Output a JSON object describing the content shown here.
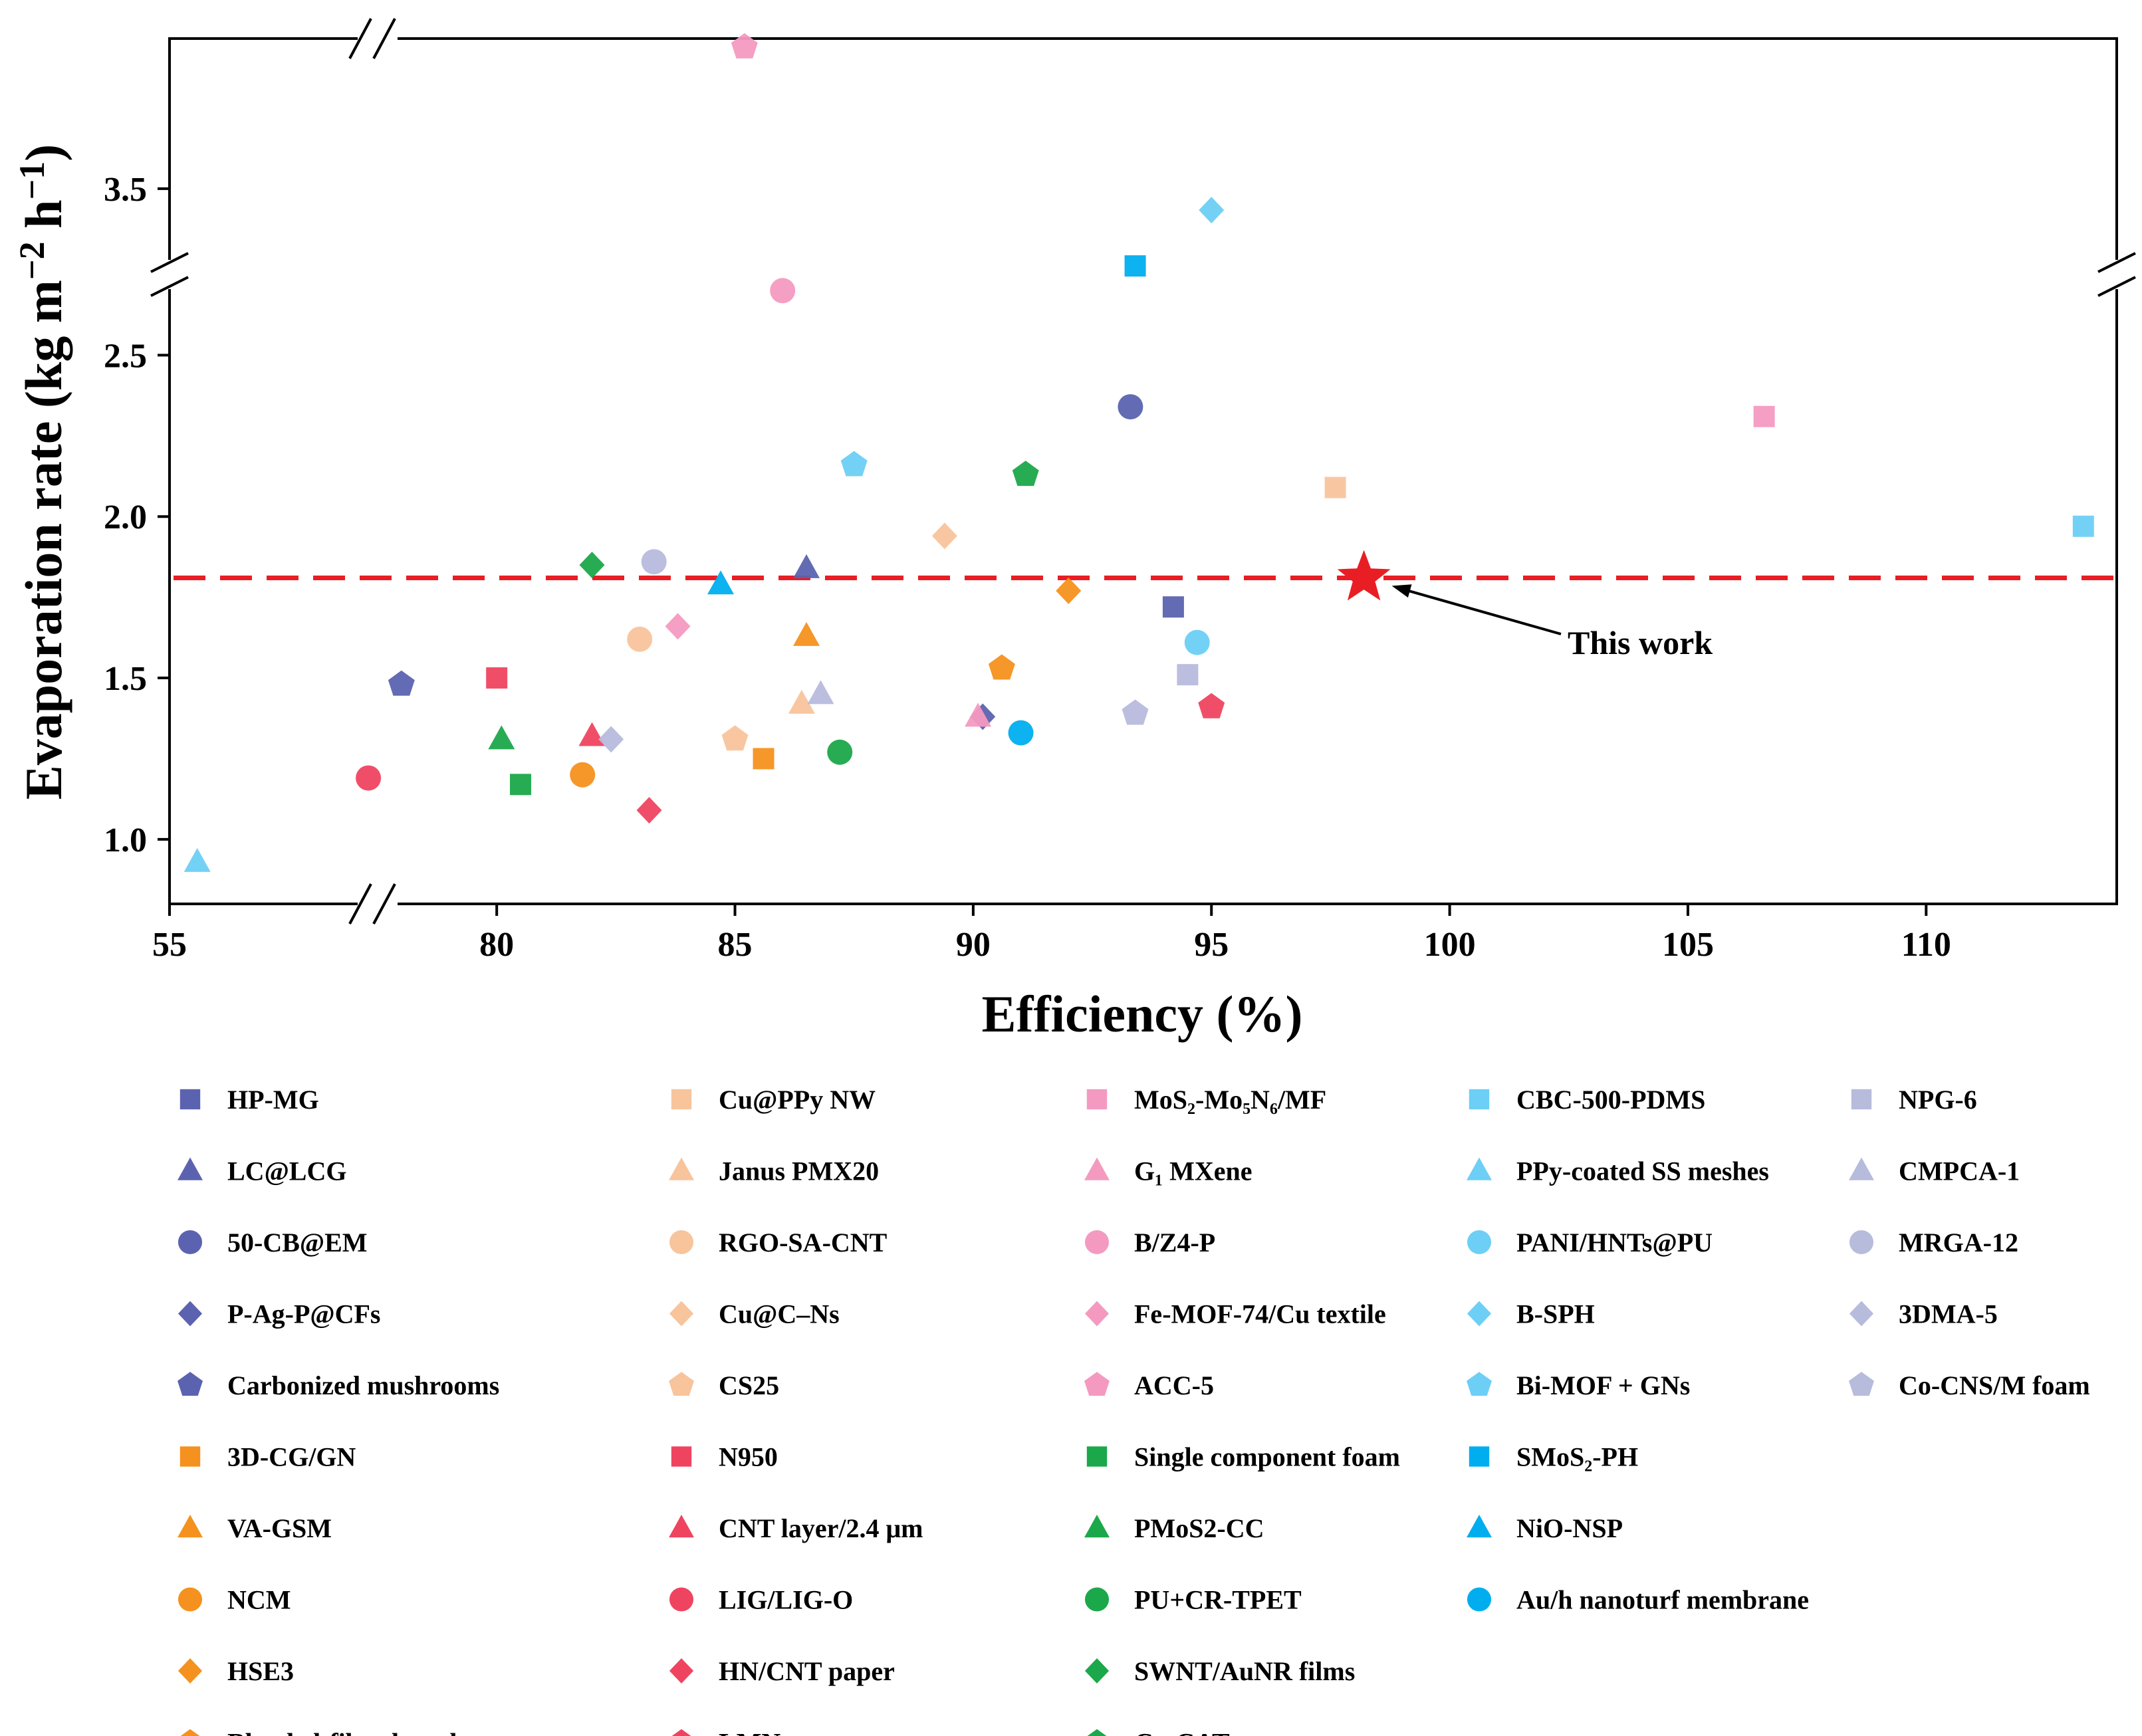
{
  "chart_data": {
    "type": "scatter",
    "title": "",
    "xlabel": "Efficiency (%)",
    "ylabel": "Evaporation rate (kg m−2 h−1)",
    "ylabel_parts": {
      "main": "Evaporation rate (kg m",
      "exp1": "−2",
      "mid": " h",
      "exp2": "−1",
      "end": ")"
    },
    "x_break": {
      "from": 55,
      "to": 77.5,
      "low_tick": 55
    },
    "y_break": {
      "from": 2.75,
      "to": 3.3
    },
    "xlim": [
      55,
      114
    ],
    "ylim": [
      0.8,
      3.85
    ],
    "x_ticks": [
      55,
      80,
      85,
      90,
      95,
      100,
      105,
      110
    ],
    "y_ticks": [
      1.0,
      1.5,
      2.0,
      2.5,
      3.5
    ],
    "x_tick_labels": [
      "55",
      "80",
      "85",
      "90",
      "95",
      "100",
      "105",
      "110"
    ],
    "y_tick_labels": [
      "1.0",
      "1.5",
      "2.0",
      "2.5",
      "3.5"
    ],
    "reference_line": {
      "y": 1.81,
      "style": "dashed",
      "color": "#e81e24"
    },
    "annotation": {
      "text": "This work",
      "target": [
        98.2,
        1.81
      ]
    },
    "highlight": {
      "name": "This work",
      "x": 98.2,
      "y": 1.81,
      "marker": "star",
      "color": "#e81e24"
    },
    "series": [
      {
        "name": "HP-MG",
        "marker": "square",
        "color": "#5b63b0",
        "x": 94.2,
        "y": 1.72
      },
      {
        "name": "LC@LCG",
        "marker": "triangle",
        "color": "#5b63b0",
        "x": 86.5,
        "y": 1.84
      },
      {
        "name": "50-CB@EM",
        "marker": "circle",
        "color": "#5b63b0",
        "x": 93.3,
        "y": 2.34
      },
      {
        "name": "P-Ag-P@CFs",
        "marker": "diamond",
        "color": "#5b63b0",
        "x": 90.2,
        "y": 1.38
      },
      {
        "name": "Carbonized mushrooms",
        "marker": "pentagon",
        "color": "#5b63b0",
        "x": 78.0,
        "y": 1.48
      },
      {
        "name": "3D-CG/GN",
        "marker": "square",
        "color": "#f5911e",
        "x": 85.6,
        "y": 1.25
      },
      {
        "name": "VA-GSM",
        "marker": "triangle",
        "color": "#f5911e",
        "x": 86.5,
        "y": 1.63
      },
      {
        "name": "NCM",
        "marker": "circle",
        "color": "#f5911e",
        "x": 81.8,
        "y": 1.2
      },
      {
        "name": "HSE3",
        "marker": "diamond",
        "color": "#f5911e",
        "x": 92.0,
        "y": 1.77
      },
      {
        "name": "Blended-fiber-based evaporator",
        "marker": "pentagon",
        "color": "#f5911e",
        "x": 90.6,
        "y": 1.53
      },
      {
        "name": "Cu@PPy NW",
        "marker": "square",
        "color": "#f8c49c",
        "x": 97.6,
        "y": 2.09
      },
      {
        "name": "Janus PMX20",
        "marker": "triangle",
        "color": "#f8c49c",
        "x": 86.4,
        "y": 1.42
      },
      {
        "name": "RGO-SA-CNT",
        "marker": "circle",
        "color": "#f8c49c",
        "x": 83.0,
        "y": 1.62
      },
      {
        "name": "Cu@C–Ns",
        "marker": "diamond",
        "color": "#f8c49c",
        "x": 89.4,
        "y": 1.94
      },
      {
        "name": "CS25",
        "marker": "pentagon",
        "color": "#f8c49c",
        "x": 85.0,
        "y": 1.31
      },
      {
        "name": "N950",
        "marker": "square",
        "color": "#ef4460",
        "x": 80.0,
        "y": 1.5
      },
      {
        "name": "CNT layer/2.4 μm",
        "marker": "triangle",
        "color": "#ef4460",
        "x": 82.0,
        "y": 1.32
      },
      {
        "name": "LIG/LIG-O",
        "marker": "circle",
        "color": "#ef4460",
        "x": 76.5,
        "y": 1.19
      },
      {
        "name": "HN/CNT paper",
        "marker": "diamond",
        "color": "#ef4460",
        "x": 83.2,
        "y": 1.09
      },
      {
        "name": "LMN",
        "marker": "pentagon",
        "color": "#ef4460",
        "x": 95.0,
        "y": 1.41
      },
      {
        "name": "MoS2-Mo5N6/MF",
        "marker": "square",
        "color": "#f49ac1",
        "x": 106.6,
        "y": 2.31
      },
      {
        "name": "G1 MXene",
        "marker": "triangle",
        "color": "#f49ac1",
        "x": 90.1,
        "y": 1.38
      },
      {
        "name": "B/Z4-P",
        "marker": "circle",
        "color": "#f49ac1",
        "x": 86.0,
        "y": 2.7
      },
      {
        "name": "Fe-MOF-74/Cu textile",
        "marker": "diamond",
        "color": "#f49ac1",
        "x": 83.8,
        "y": 1.66
      },
      {
        "name": "ACC-5",
        "marker": "pentagon",
        "color": "#f49ac1",
        "x": 85.2,
        "y": 3.83
      },
      {
        "name": "Single component foam",
        "marker": "square",
        "color": "#1ba84a",
        "x": 80.5,
        "y": 1.17
      },
      {
        "name": "PMoS2-CC",
        "marker": "triangle",
        "color": "#1ba84a",
        "x": 80.1,
        "y": 1.31
      },
      {
        "name": "PU+CR-TPET",
        "marker": "circle",
        "color": "#1ba84a",
        "x": 87.2,
        "y": 1.27
      },
      {
        "name": "SWNT/AuNR films",
        "marker": "diamond",
        "color": "#1ba84a",
        "x": 82.0,
        "y": 1.85
      },
      {
        "name": "Co-CAT",
        "marker": "pentagon",
        "color": "#1ba84a",
        "x": 91.1,
        "y": 2.13
      },
      {
        "name": "CBC-500-PDMS",
        "marker": "square",
        "color": "#6dcff6",
        "x": 113.3,
        "y": 1.97
      },
      {
        "name": "PPy-coated SS meshes",
        "marker": "triangle",
        "color": "#6dcff6",
        "x": 58.0,
        "y": 0.93
      },
      {
        "name": "PANI/HNTs@PU",
        "marker": "circle",
        "color": "#6dcff6",
        "x": 94.7,
        "y": 1.61
      },
      {
        "name": "B-SPH",
        "marker": "diamond",
        "color": "#6dcff6",
        "x": 95.0,
        "y": 3.45
      },
      {
        "name": "Bi-MOF + GNs",
        "marker": "pentagon",
        "color": "#6dcff6",
        "x": 87.5,
        "y": 2.16
      },
      {
        "name": "SMoS2-PH",
        "marker": "square",
        "color": "#00aeef",
        "x": 93.4,
        "y": 3.32
      },
      {
        "name": "NiO-NSP",
        "marker": "triangle",
        "color": "#00aeef",
        "x": 84.7,
        "y": 1.79
      },
      {
        "name": "Au/h nanoturf membrane",
        "marker": "circle",
        "color": "#00aeef",
        "x": 91.0,
        "y": 1.33
      },
      {
        "name": "NPG-6",
        "marker": "square",
        "color": "#b7bbdc",
        "x": 94.5,
        "y": 1.51
      },
      {
        "name": "CMPCA-1",
        "marker": "triangle",
        "color": "#b7bbdc",
        "x": 86.8,
        "y": 1.45
      },
      {
        "name": "MRGA-12",
        "marker": "circle",
        "color": "#b7bbdc",
        "x": 83.3,
        "y": 1.86
      },
      {
        "name": "3DMA-5",
        "marker": "diamond",
        "color": "#b7bbdc",
        "x": 82.4,
        "y": 1.31
      },
      {
        "name": "Co-CNS/M foam",
        "marker": "pentagon",
        "color": "#b7bbdc",
        "x": 93.4,
        "y": 1.39
      }
    ]
  },
  "legend": {
    "columns": [
      [
        {
          "label": "HP-MG",
          "marker": "square",
          "color": "#5b63b0"
        },
        {
          "label": "LC@LCG",
          "marker": "triangle",
          "color": "#5b63b0"
        },
        {
          "label": "50-CB@EM",
          "marker": "circle",
          "color": "#5b63b0"
        },
        {
          "label": "P-Ag-P@CFs",
          "marker": "diamond",
          "color": "#5b63b0"
        },
        {
          "label": "Carbonized mushrooms",
          "marker": "pentagon",
          "color": "#5b63b0"
        },
        {
          "label": "3D-CG/GN",
          "marker": "square",
          "color": "#f5911e"
        },
        {
          "label": "VA-GSM",
          "marker": "triangle",
          "color": "#f5911e"
        },
        {
          "label": "NCM",
          "marker": "circle",
          "color": "#f5911e"
        },
        {
          "label": "HSE3",
          "marker": "diamond",
          "color": "#f5911e"
        },
        {
          "label": "Blended-fiber-based evaporator",
          "marker": "pentagon",
          "color": "#f5911e"
        }
      ],
      [
        {
          "label": "Cu@PPy NW",
          "marker": "square",
          "color": "#f8c49c"
        },
        {
          "label": "Janus PMX20",
          "marker": "triangle",
          "color": "#f8c49c"
        },
        {
          "label": "RGO-SA-CNT",
          "marker": "circle",
          "color": "#f8c49c"
        },
        {
          "label": "Cu@C–Ns",
          "marker": "diamond",
          "color": "#f8c49c"
        },
        {
          "label": "CS25",
          "marker": "pentagon",
          "color": "#f8c49c"
        },
        {
          "label": "N950",
          "marker": "square",
          "color": "#ef4460"
        },
        {
          "label": "CNT layer/2.4 μm",
          "marker": "triangle",
          "color": "#ef4460"
        },
        {
          "label": "LIG/LIG-O",
          "marker": "circle",
          "color": "#ef4460"
        },
        {
          "label": "HN/CNT paper",
          "marker": "diamond",
          "color": "#ef4460"
        },
        {
          "label": "LMN",
          "marker": "pentagon",
          "color": "#ef4460"
        }
      ],
      [
        {
          "label": "MoS₂-Mo₅N₆/MF",
          "marker": "square",
          "color": "#f49ac1"
        },
        {
          "label": "G₁ MXene",
          "marker": "triangle",
          "color": "#f49ac1"
        },
        {
          "label": "B/Z4-P",
          "marker": "circle",
          "color": "#f49ac1"
        },
        {
          "label": "Fe-MOF-74/Cu textile",
          "marker": "diamond",
          "color": "#f49ac1"
        },
        {
          "label": "ACC-5",
          "marker": "pentagon",
          "color": "#f49ac1"
        },
        {
          "label": "Single component foam",
          "marker": "square",
          "color": "#1ba84a"
        },
        {
          "label": "PMoS2-CC",
          "marker": "triangle",
          "color": "#1ba84a"
        },
        {
          "label": "PU+CR-TPET",
          "marker": "circle",
          "color": "#1ba84a"
        },
        {
          "label": "SWNT/AuNR films",
          "marker": "diamond",
          "color": "#1ba84a"
        },
        {
          "label": "Co-CAT",
          "marker": "pentagon",
          "color": "#1ba84a"
        }
      ],
      [
        {
          "label": "CBC-500-PDMS",
          "marker": "square",
          "color": "#6dcff6"
        },
        {
          "label": "PPy-coated SS meshes",
          "marker": "triangle",
          "color": "#6dcff6"
        },
        {
          "label": "PANI/HNTs@PU",
          "marker": "circle",
          "color": "#6dcff6"
        },
        {
          "label": "B-SPH",
          "marker": "diamond",
          "color": "#6dcff6"
        },
        {
          "label": "Bi-MOF + GNs",
          "marker": "pentagon",
          "color": "#6dcff6"
        },
        {
          "label": "SMoS₂-PH",
          "marker": "square",
          "color": "#00aeef"
        },
        {
          "label": "NiO-NSP",
          "marker": "triangle",
          "color": "#00aeef"
        },
        {
          "label": "Au/h nanoturf membrane",
          "marker": "circle",
          "color": "#00aeef"
        }
      ],
      [
        {
          "label": "NPG-6",
          "marker": "square",
          "color": "#b7bbdc"
        },
        {
          "label": "CMPCA-1",
          "marker": "triangle",
          "color": "#b7bbdc"
        },
        {
          "label": "MRGA-12",
          "marker": "circle",
          "color": "#b7bbdc"
        },
        {
          "label": "3DMA-5",
          "marker": "diamond",
          "color": "#b7bbdc"
        },
        {
          "label": "Co-CNS/M foam",
          "marker": "pentagon",
          "color": "#b7bbdc"
        }
      ]
    ]
  }
}
